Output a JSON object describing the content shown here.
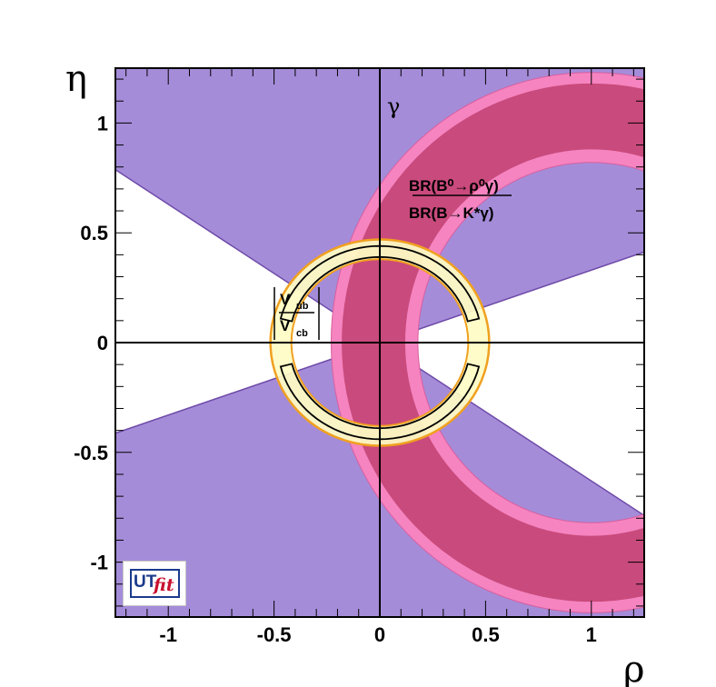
{
  "chart_data": {
    "type": "contour",
    "title": "",
    "xlabel": "ρ",
    "ylabel": "η",
    "xlim": [
      -1.25,
      1.25
    ],
    "ylim": [
      -1.25,
      1.25
    ],
    "x_ticks": [
      -1,
      -0.5,
      0,
      0.5,
      1
    ],
    "x_tick_labels": [
      "-1",
      "-0.5",
      "0",
      "0.5",
      "1"
    ],
    "y_ticks": [
      -1,
      -0.5,
      0,
      0.5,
      1
    ],
    "y_tick_labels": [
      "-1",
      "-0.5",
      "0",
      "0.5",
      "1"
    ],
    "grid": false,
    "colors": {
      "gamma": "#a58cd9",
      "gamma_edge": "#6e4aa8",
      "ratio_outer": "#f584c0",
      "ratio_inner": "#c94a7c",
      "vub_fill": "#fefcc4",
      "vub_edge": "#f0a020"
    },
    "regions": {
      "gamma": {
        "apex": [
          0,
          0
        ],
        "upper_left_edge_slope": -0.63,
        "upper_right_edge_slope": 0.33,
        "lower_left_edge_slope": 0.33,
        "lower_right_edge_slope": -0.63
      },
      "ratio": {
        "center": [
          1.0,
          0.0
        ],
        "outer_band": [
          0.82,
          1.23
        ],
        "inner_band": [
          0.88,
          1.18
        ]
      },
      "vub": {
        "center": [
          0,
          0
        ],
        "band": [
          0.38,
          0.47
        ],
        "x_scale": 1.1
      }
    },
    "annotations": {
      "gamma": "γ",
      "br_num": "BR(B⁰→ρ⁰γ)",
      "br_den": "BR(B→K*γ)",
      "vub_num": "V",
      "vub_num_sub": "ub",
      "vub_den": "V",
      "vub_den_sub": "cb"
    }
  },
  "logo": {
    "ut": "UT",
    "fit": "fit"
  }
}
